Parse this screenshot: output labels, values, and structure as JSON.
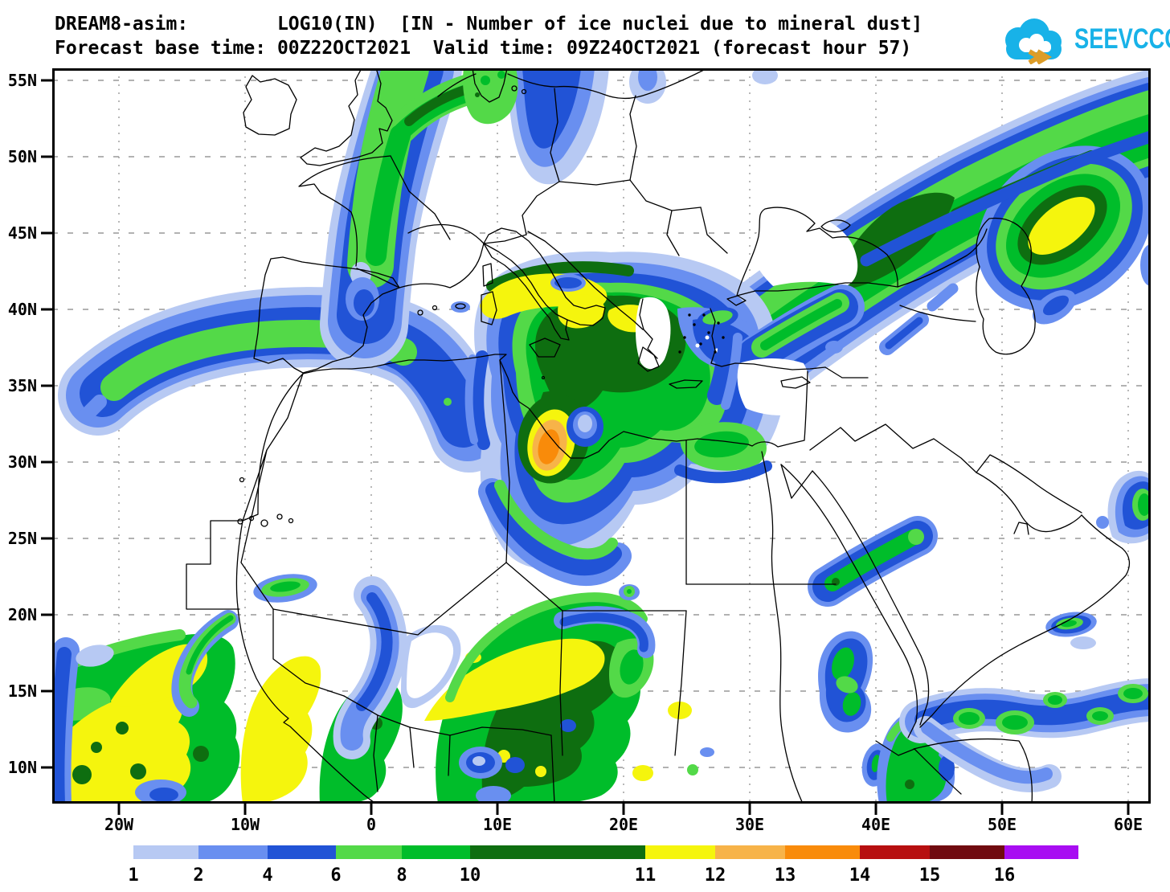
{
  "header": {
    "title_line1": "DREAM8-asim:        LOG10(IN)  [IN - Number of ice nuclei due to mineral dust]",
    "title_line2": "Forecast base time: 00Z22OCT2021  Valid time: 09Z24OCT2021 (forecast hour 57)"
  },
  "logo": {
    "text": "SEEVCCC",
    "cloud_color": "#18b2e8",
    "bolt_color": "#dd9d28"
  },
  "map": {
    "lat_ticks": [
      {
        "label": "55N",
        "deg": 55
      },
      {
        "label": "50N",
        "deg": 50
      },
      {
        "label": "45N",
        "deg": 45
      },
      {
        "label": "40N",
        "deg": 40
      },
      {
        "label": "35N",
        "deg": 35
      },
      {
        "label": "30N",
        "deg": 30
      },
      {
        "label": "25N",
        "deg": 25
      },
      {
        "label": "20N",
        "deg": 20
      },
      {
        "label": "15N",
        "deg": 15
      },
      {
        "label": "10N",
        "deg": 10
      }
    ],
    "lon_ticks": [
      {
        "label": "20W",
        "deg": -20
      },
      {
        "label": "10W",
        "deg": -10
      },
      {
        "label": "0",
        "deg": 0
      },
      {
        "label": "10E",
        "deg": 10
      },
      {
        "label": "20E",
        "deg": 20
      },
      {
        "label": "30E",
        "deg": 30
      },
      {
        "label": "40E",
        "deg": 40
      },
      {
        "label": "50E",
        "deg": 50
      },
      {
        "label": "60E",
        "deg": 60
      }
    ]
  },
  "legend": {
    "entries": [
      {
        "label": "1",
        "color": "#b7c9f3"
      },
      {
        "label": "2",
        "color": "#698ff0"
      },
      {
        "label": "4",
        "color": "#2153d6"
      },
      {
        "label": "6",
        "color": "#53d948"
      },
      {
        "label": "8",
        "color": "#00bd2a"
      },
      {
        "label": "10",
        "color": "#0e6e10"
      },
      {
        "label": "11",
        "color": "#f5f50d"
      },
      {
        "label": "12",
        "color": "#f7b349"
      },
      {
        "label": "13",
        "color": "#f98b0a"
      },
      {
        "label": "14",
        "color": "#b70f10"
      },
      {
        "label": "15",
        "color": "#700a10"
      },
      {
        "label": "16",
        "color": "#a80df2"
      }
    ]
  }
}
